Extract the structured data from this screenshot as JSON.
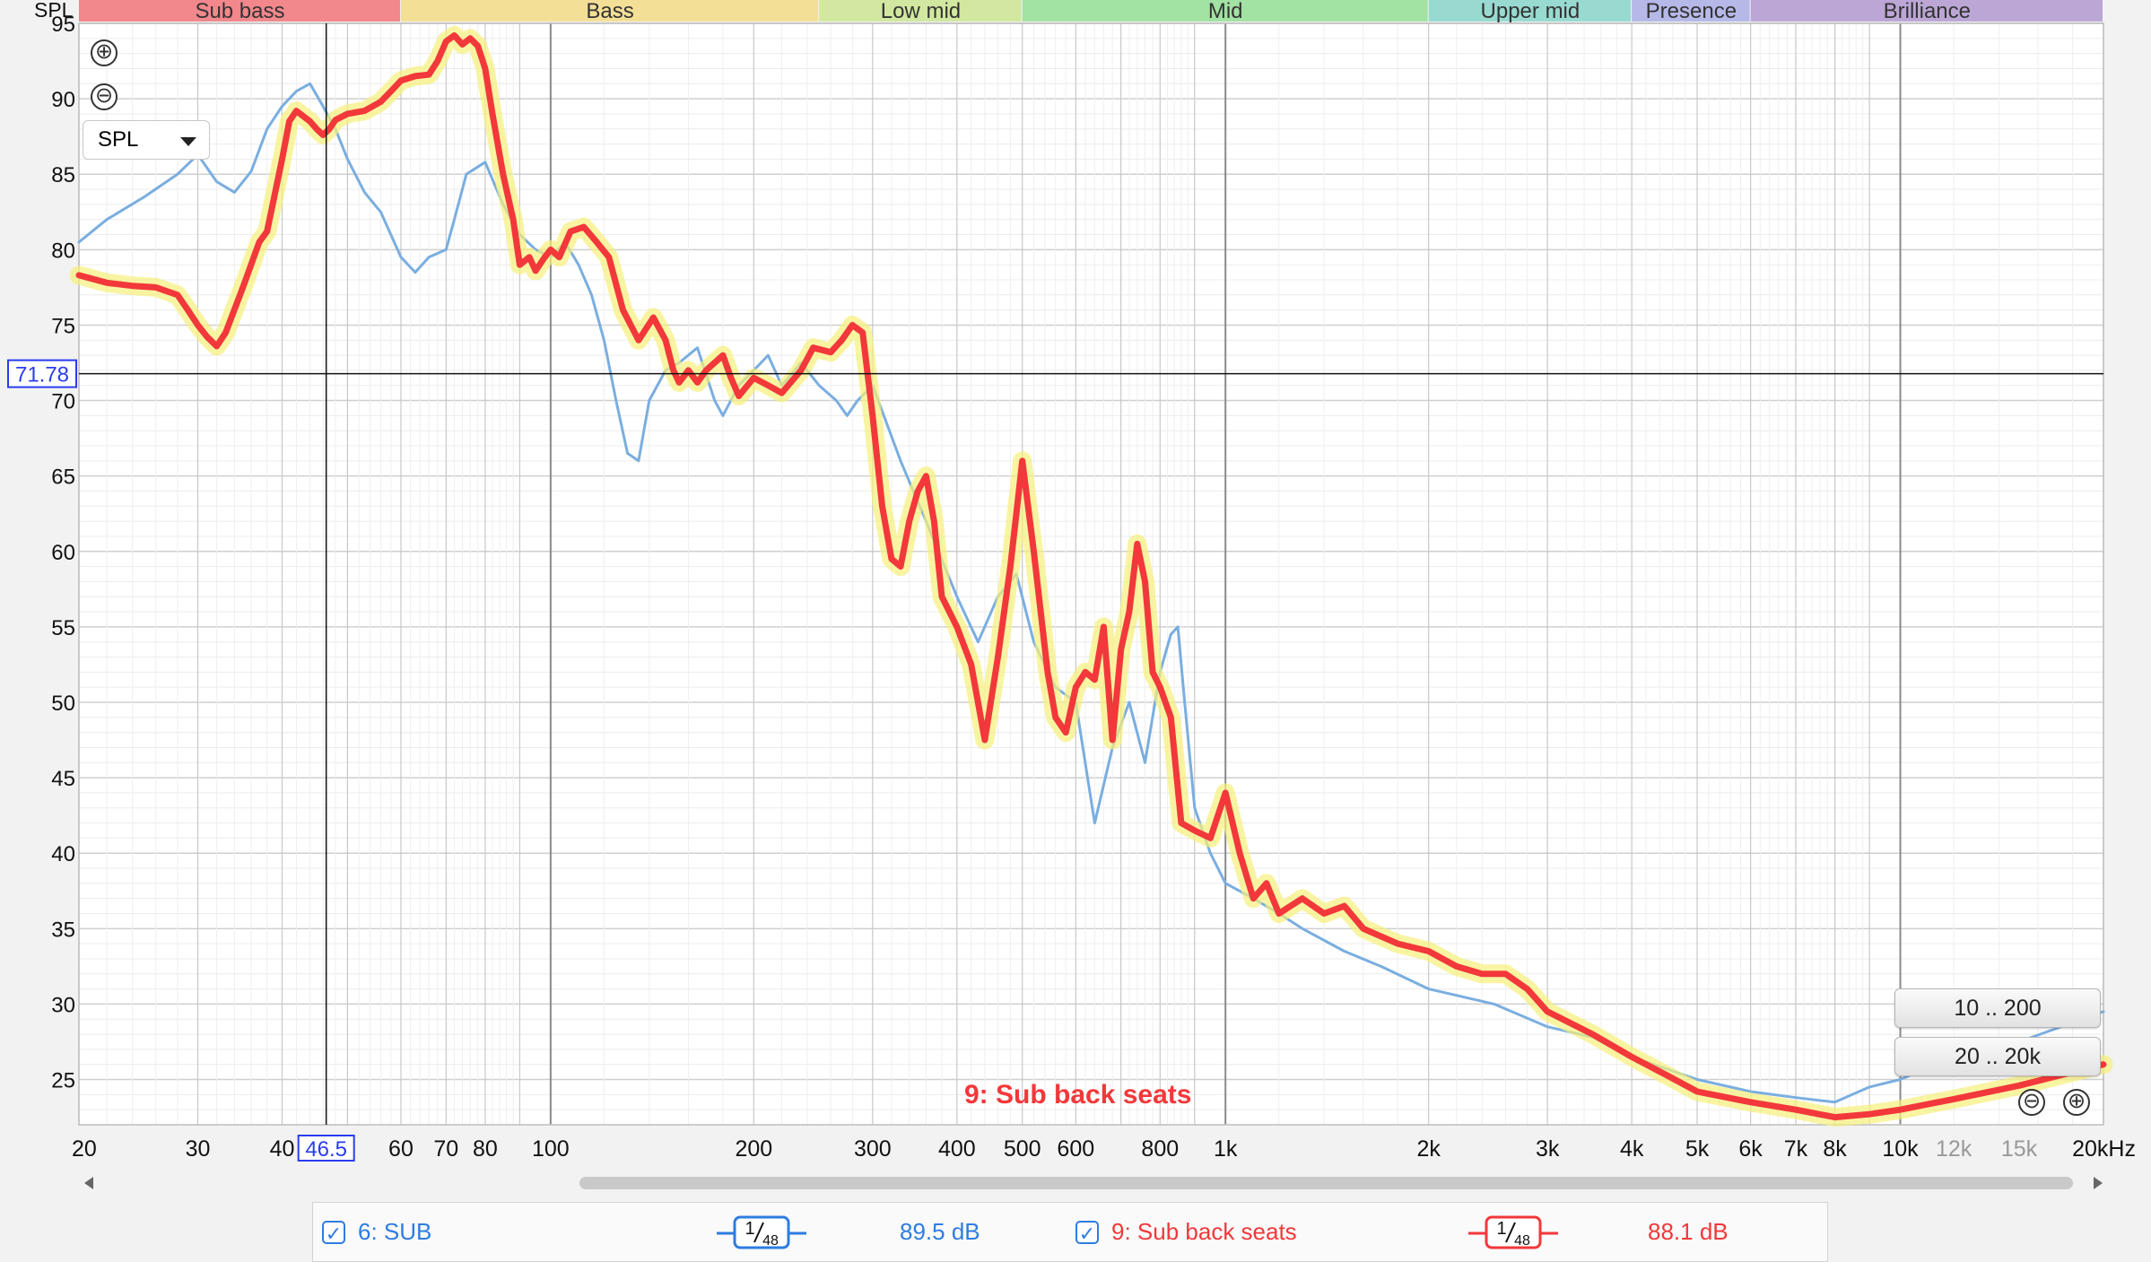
{
  "chart_data": {
    "type": "line",
    "ylabel": "SPL",
    "x_scale": "log",
    "xlim": [
      20,
      20000
    ],
    "ylim": [
      22,
      95
    ],
    "y_ticks": [
      25,
      30,
      35,
      40,
      45,
      50,
      55,
      60,
      65,
      70,
      75,
      80,
      85,
      90,
      95
    ],
    "x_ticks": [
      {
        "v": 20,
        "label": "20"
      },
      {
        "v": 30,
        "label": "30"
      },
      {
        "v": 40,
        "label": "40"
      },
      {
        "v": 60,
        "label": "60"
      },
      {
        "v": 70,
        "label": "70"
      },
      {
        "v": 80,
        "label": "80"
      },
      {
        "v": 100,
        "label": "100"
      },
      {
        "v": 200,
        "label": "200"
      },
      {
        "v": 300,
        "label": "300"
      },
      {
        "v": 400,
        "label": "400"
      },
      {
        "v": 500,
        "label": "500"
      },
      {
        "v": 600,
        "label": "600"
      },
      {
        "v": 800,
        "label": "800"
      },
      {
        "v": 1000,
        "label": "1k"
      },
      {
        "v": 2000,
        "label": "2k"
      },
      {
        "v": 3000,
        "label": "3k"
      },
      {
        "v": 4000,
        "label": "4k"
      },
      {
        "v": 5000,
        "label": "5k"
      },
      {
        "v": 6000,
        "label": "6k"
      },
      {
        "v": 7000,
        "label": "7k"
      },
      {
        "v": 8000,
        "label": "8k"
      },
      {
        "v": 10000,
        "label": "10k"
      },
      {
        "v": 12000,
        "label": "12k",
        "muted": true
      },
      {
        "v": 15000,
        "label": "15k",
        "muted": true
      },
      {
        "v": 20000,
        "label": "20kHz"
      }
    ],
    "bands": [
      {
        "label": "Sub bass",
        "from": 20,
        "to": 60,
        "color": "#f2888c"
      },
      {
        "label": "Bass",
        "from": 60,
        "to": 250,
        "color": "#f4df96"
      },
      {
        "label": "Low mid",
        "from": 250,
        "to": 500,
        "color": "#d2e8a0"
      },
      {
        "label": "Mid",
        "from": 500,
        "to": 2000,
        "color": "#a2e2a2"
      },
      {
        "label": "Upper mid",
        "from": 2000,
        "to": 4000,
        "color": "#98dad0"
      },
      {
        "label": "Presence",
        "from": 4000,
        "to": 6000,
        "color": "#b6b8e8"
      },
      {
        "label": "Brilliance",
        "from": 6000,
        "to": 20000,
        "color": "#bca6d6"
      }
    ],
    "cursor": {
      "x": 46.5,
      "x_label": "46.5",
      "y": 71.78,
      "y_label": "71.78"
    },
    "annotation": "9: Sub back seats",
    "series": [
      {
        "name": "6: SUB",
        "color": "#7aaee0",
        "width": 3,
        "points": [
          [
            20,
            80.5
          ],
          [
            22,
            82
          ],
          [
            25,
            83.5
          ],
          [
            28,
            85
          ],
          [
            30,
            86.3
          ],
          [
            32,
            84.5
          ],
          [
            34,
            83.8
          ],
          [
            36,
            85.2
          ],
          [
            38,
            88
          ],
          [
            40,
            89.5
          ],
          [
            42,
            90.5
          ],
          [
            44,
            91
          ],
          [
            46,
            89.5
          ],
          [
            48,
            88
          ],
          [
            50,
            86
          ],
          [
            53,
            83.8
          ],
          [
            56,
            82.5
          ],
          [
            60,
            79.5
          ],
          [
            63,
            78.5
          ],
          [
            66,
            79.5
          ],
          [
            70,
            80
          ],
          [
            72,
            82
          ],
          [
            75,
            85
          ],
          [
            80,
            85.8
          ],
          [
            85,
            83
          ],
          [
            90,
            81
          ],
          [
            95,
            80
          ],
          [
            100,
            79.5
          ],
          [
            105,
            80.5
          ],
          [
            110,
            79
          ],
          [
            115,
            77
          ],
          [
            120,
            74
          ],
          [
            125,
            70
          ],
          [
            130,
            66.5
          ],
          [
            135,
            66
          ],
          [
            140,
            70
          ],
          [
            148,
            72
          ],
          [
            155,
            72.5
          ],
          [
            165,
            73.5
          ],
          [
            175,
            70
          ],
          [
            180,
            69
          ],
          [
            190,
            71
          ],
          [
            200,
            72
          ],
          [
            210,
            73
          ],
          [
            220,
            71
          ],
          [
            235,
            72.5
          ],
          [
            250,
            71
          ],
          [
            265,
            70
          ],
          [
            275,
            69
          ],
          [
            285,
            70
          ],
          [
            300,
            71
          ],
          [
            330,
            66
          ],
          [
            360,
            62
          ],
          [
            400,
            57
          ],
          [
            430,
            54
          ],
          [
            460,
            57
          ],
          [
            490,
            58.5
          ],
          [
            520,
            54
          ],
          [
            560,
            51
          ],
          [
            600,
            50
          ],
          [
            640,
            42
          ],
          [
            680,
            47
          ],
          [
            720,
            50
          ],
          [
            760,
            46
          ],
          [
            800,
            52
          ],
          [
            830,
            54.5
          ],
          [
            850,
            55
          ],
          [
            870,
            50
          ],
          [
            900,
            43
          ],
          [
            950,
            40
          ],
          [
            1000,
            38
          ],
          [
            1100,
            37
          ],
          [
            1200,
            36
          ],
          [
            1300,
            35
          ],
          [
            1500,
            33.5
          ],
          [
            1700,
            32.5
          ],
          [
            2000,
            31
          ],
          [
            2500,
            30
          ],
          [
            3000,
            28.5
          ],
          [
            3500,
            27.8
          ],
          [
            4000,
            26.5
          ],
          [
            5000,
            25
          ],
          [
            6000,
            24.2
          ],
          [
            7000,
            23.8
          ],
          [
            8000,
            23.5
          ],
          [
            9000,
            24.5
          ],
          [
            10000,
            25
          ],
          [
            12000,
            26.5
          ],
          [
            15000,
            27.5
          ],
          [
            20000,
            29.5
          ]
        ]
      },
      {
        "name": "9: Sub back seats",
        "color": "#f2383a",
        "width": 7,
        "points": [
          [
            20,
            78.3
          ],
          [
            22,
            77.8
          ],
          [
            24,
            77.6
          ],
          [
            26,
            77.5
          ],
          [
            28,
            77
          ],
          [
            29,
            76
          ],
          [
            30,
            75
          ],
          [
            31,
            74.2
          ],
          [
            32,
            73.6
          ],
          [
            33,
            74.5
          ],
          [
            35,
            77.5
          ],
          [
            37,
            80.5
          ],
          [
            38,
            81.2
          ],
          [
            40,
            86
          ],
          [
            41,
            88.5
          ],
          [
            42,
            89.2
          ],
          [
            44,
            88.5
          ],
          [
            45,
            88
          ],
          [
            46,
            87.6
          ],
          [
            47,
            88
          ],
          [
            48,
            88.6
          ],
          [
            50,
            89
          ],
          [
            53,
            89.2
          ],
          [
            56,
            89.8
          ],
          [
            58,
            90.5
          ],
          [
            60,
            91.2
          ],
          [
            63,
            91.5
          ],
          [
            66,
            91.6
          ],
          [
            68,
            92.5
          ],
          [
            70,
            93.8
          ],
          [
            72,
            94.2
          ],
          [
            74,
            93.6
          ],
          [
            76,
            94
          ],
          [
            78,
            93.5
          ],
          [
            80,
            92
          ],
          [
            82,
            89
          ],
          [
            85,
            85
          ],
          [
            88,
            82
          ],
          [
            90,
            79
          ],
          [
            93,
            79.5
          ],
          [
            95,
            78.6
          ],
          [
            98,
            79.5
          ],
          [
            100,
            80
          ],
          [
            103,
            79.5
          ],
          [
            107,
            81.2
          ],
          [
            112,
            81.5
          ],
          [
            117,
            80.5
          ],
          [
            122,
            79.5
          ],
          [
            128,
            76
          ],
          [
            135,
            74
          ],
          [
            142,
            75.5
          ],
          [
            148,
            74
          ],
          [
            152,
            72
          ],
          [
            155,
            71.2
          ],
          [
            160,
            72
          ],
          [
            165,
            71.2
          ],
          [
            170,
            72
          ],
          [
            180,
            73
          ],
          [
            185,
            71.5
          ],
          [
            190,
            70.3
          ],
          [
            200,
            71.5
          ],
          [
            210,
            71
          ],
          [
            220,
            70.5
          ],
          [
            235,
            72
          ],
          [
            245,
            73.5
          ],
          [
            260,
            73.2
          ],
          [
            270,
            74
          ],
          [
            280,
            75
          ],
          [
            290,
            74.5
          ],
          [
            300,
            69
          ],
          [
            310,
            63
          ],
          [
            320,
            59.5
          ],
          [
            330,
            59
          ],
          [
            340,
            62
          ],
          [
            350,
            64
          ],
          [
            360,
            65
          ],
          [
            370,
            62
          ],
          [
            380,
            57
          ],
          [
            400,
            55
          ],
          [
            420,
            52.5
          ],
          [
            440,
            47.5
          ],
          [
            460,
            53
          ],
          [
            480,
            59
          ],
          [
            500,
            66
          ],
          [
            520,
            60
          ],
          [
            545,
            52
          ],
          [
            560,
            49
          ],
          [
            580,
            48
          ],
          [
            600,
            51
          ],
          [
            620,
            52
          ],
          [
            640,
            51.5
          ],
          [
            660,
            55
          ],
          [
            680,
            47.5
          ],
          [
            700,
            53.5
          ],
          [
            720,
            56
          ],
          [
            740,
            60.5
          ],
          [
            760,
            58
          ],
          [
            780,
            52
          ],
          [
            800,
            51
          ],
          [
            830,
            49
          ],
          [
            860,
            42
          ],
          [
            900,
            41.5
          ],
          [
            950,
            41
          ],
          [
            1000,
            44
          ],
          [
            1050,
            40
          ],
          [
            1100,
            37
          ],
          [
            1150,
            38
          ],
          [
            1200,
            36
          ],
          [
            1300,
            37
          ],
          [
            1400,
            36
          ],
          [
            1500,
            36.5
          ],
          [
            1600,
            35
          ],
          [
            1800,
            34
          ],
          [
            2000,
            33.5
          ],
          [
            2200,
            32.5
          ],
          [
            2400,
            32
          ],
          [
            2600,
            32
          ],
          [
            2800,
            31
          ],
          [
            3000,
            29.5
          ],
          [
            3500,
            28
          ],
          [
            4000,
            26.5
          ],
          [
            4500,
            25.3
          ],
          [
            5000,
            24.2
          ],
          [
            6000,
            23.5
          ],
          [
            7000,
            23
          ],
          [
            8000,
            22.5
          ],
          [
            9000,
            22.7
          ],
          [
            10000,
            23
          ],
          [
            12000,
            23.7
          ],
          [
            15000,
            24.6
          ],
          [
            20000,
            26
          ]
        ]
      }
    ]
  },
  "controls": {
    "spl_select": "SPL",
    "zoom_in": "⊕",
    "zoom_out": "⊖",
    "range_btn_1": "10 .. 200",
    "range_btn_2": "20 .. 20k"
  },
  "legend": [
    {
      "check": "✓",
      "name": "6: SUB",
      "smoothing_num": "1",
      "smoothing_den": "48",
      "value": "89.5 dB",
      "color": "#2f7ce0"
    },
    {
      "check": "✓",
      "name": "9: Sub back seats",
      "smoothing_num": "1",
      "smoothing_den": "48",
      "value": "88.1 dB",
      "color": "#f2383a"
    }
  ]
}
